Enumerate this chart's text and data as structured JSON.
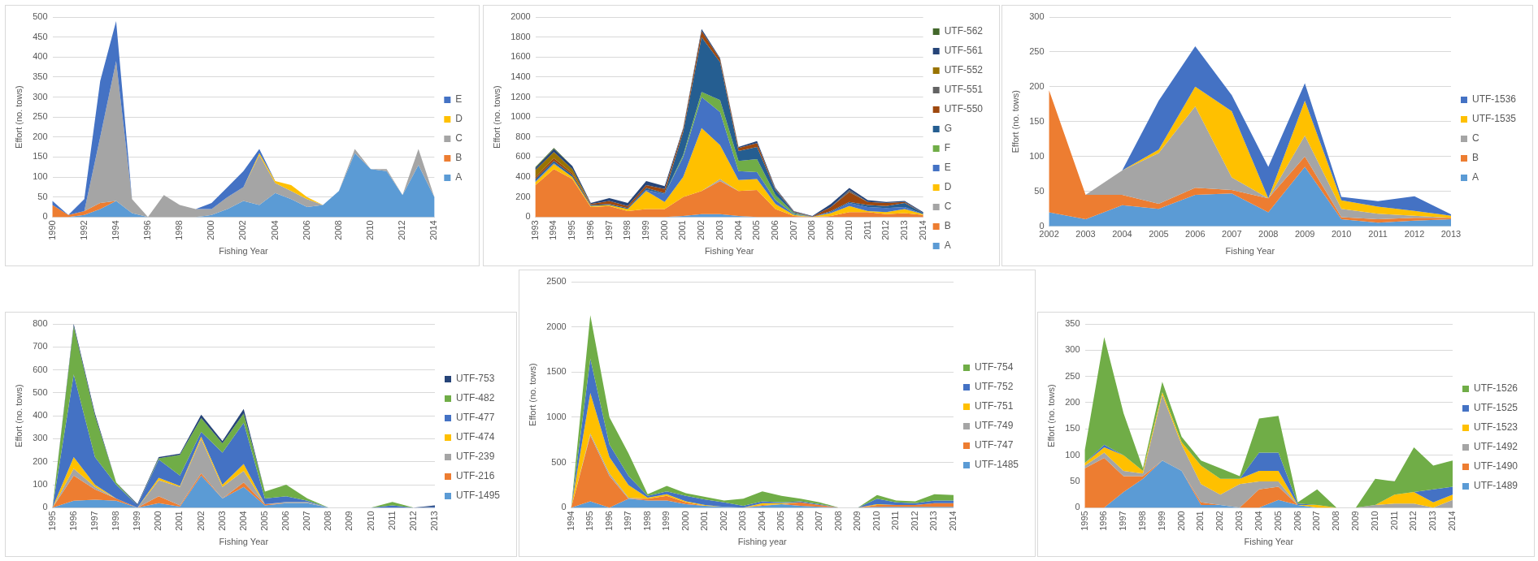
{
  "chart_data": [
    {
      "type": "area",
      "stacked": true,
      "xlabel": "Fishing Year",
      "ylabel": "Effort (no. tows)",
      "grid": "y",
      "legend": "right",
      "categories": [
        "1990",
        null,
        "1992",
        null,
        "1994",
        null,
        "1996",
        null,
        "1998",
        null,
        "2000",
        null,
        "2002",
        null,
        "2004",
        null,
        "2006",
        null,
        "2008",
        null,
        "2010",
        null,
        "2012",
        null,
        "2014"
      ],
      "ylim": [
        0,
        500
      ],
      "yticks": [
        0,
        50,
        100,
        150,
        200,
        250,
        300,
        350,
        400,
        450,
        500
      ],
      "series": [
        {
          "name": "A",
          "color": "#5b9bd5",
          "values": [
            0,
            0,
            5,
            20,
            40,
            10,
            0,
            0,
            0,
            0,
            5,
            20,
            40,
            30,
            60,
            45,
            25,
            30,
            65,
            160,
            120,
            115,
            55,
            130,
            50
          ]
        },
        {
          "name": "B",
          "color": "#ed7d31",
          "values": [
            30,
            5,
            10,
            15,
            0,
            null,
            null,
            null,
            null,
            null,
            null,
            null,
            null,
            null,
            null,
            null,
            null,
            null,
            null,
            null,
            null,
            null,
            null,
            null,
            null
          ]
        },
        {
          "name": "C",
          "color": "#a5a5a5",
          "values": [
            0,
            0,
            0,
            165,
            350,
            35,
            0,
            55,
            30,
            20,
            15,
            30,
            35,
            125,
            25,
            20,
            20,
            0,
            0,
            10,
            0,
            5,
            0,
            40,
            0
          ]
        },
        {
          "name": "D",
          "color": "#ffc000",
          "values": [
            null,
            null,
            null,
            null,
            null,
            null,
            null,
            null,
            null,
            null,
            null,
            null,
            0,
            5,
            5,
            15,
            5,
            0,
            null,
            null,
            null,
            null,
            null,
            null,
            null
          ]
        },
        {
          "name": "E",
          "color": "#4472c4",
          "values": [
            10,
            0,
            30,
            140,
            100,
            0,
            null,
            null,
            null,
            0,
            15,
            25,
            40,
            10,
            0,
            null,
            null,
            null,
            null,
            null,
            null,
            null,
            null,
            null,
            null
          ]
        }
      ]
    },
    {
      "type": "area",
      "stacked": true,
      "xlabel": "Fishing Year",
      "ylabel": "Effort (no. tows)",
      "grid": "y",
      "legend": "right",
      "categories": [
        "1993",
        "1994",
        "1995",
        "1996",
        "1997",
        "1998",
        "1999",
        "2000",
        "2001",
        "2002",
        "2003",
        "2004",
        "2005",
        "2006",
        "2007",
        "2008",
        "2009",
        "2010",
        "2011",
        "2012",
        "2013",
        "2014"
      ],
      "ylim": [
        0,
        2000
      ],
      "yticks": [
        0,
        200,
        400,
        600,
        800,
        1000,
        1200,
        1400,
        1600,
        1800,
        2000
      ],
      "series": [
        {
          "name": "A",
          "color": "#5b9bd5",
          "values": [
            null,
            null,
            null,
            null,
            null,
            null,
            null,
            0,
            10,
            30,
            30,
            10,
            0,
            null,
            null,
            null,
            null,
            null,
            null,
            null,
            null,
            null
          ]
        },
        {
          "name": "B",
          "color": "#ed7d31",
          "values": [
            320,
            480,
            380,
            100,
            110,
            60,
            80,
            80,
            190,
            230,
            330,
            250,
            270,
            80,
            10,
            0,
            10,
            50,
            50,
            30,
            40,
            20
          ]
        },
        {
          "name": "C",
          "color": "#a5a5a5",
          "values": [
            null,
            null,
            null,
            null,
            null,
            null,
            null,
            null,
            null,
            0,
            20,
            0,
            null,
            null,
            null,
            null,
            null,
            null,
            null,
            null,
            null,
            null
          ]
        },
        {
          "name": "D",
          "color": "#ffc000",
          "values": [
            30,
            50,
            20,
            10,
            10,
            20,
            180,
            70,
            200,
            630,
            340,
            110,
            110,
            50,
            10,
            0,
            30,
            60,
            10,
            20,
            40,
            10
          ]
        },
        {
          "name": "E",
          "color": "#4472c4",
          "values": [
            10,
            10,
            0,
            0,
            0,
            0,
            10,
            80,
            200,
            310,
            330,
            90,
            70,
            40,
            10,
            0,
            10,
            30,
            40,
            40,
            20,
            0
          ]
        },
        {
          "name": "F",
          "color": "#70ad47",
          "values": [
            null,
            null,
            null,
            null,
            null,
            null,
            null,
            0,
            20,
            50,
            120,
            100,
            130,
            50,
            10,
            0,
            null,
            null,
            null,
            null,
            null,
            null
          ]
        },
        {
          "name": "G",
          "color": "#255e91",
          "values": [
            20,
            20,
            20,
            10,
            10,
            10,
            20,
            10,
            230,
            550,
            380,
            100,
            120,
            50,
            10,
            0,
            10,
            10,
            20,
            20,
            40,
            10
          ]
        },
        {
          "name": "UTF-550",
          "color": "#9e480e",
          "values": [
            20,
            30,
            20,
            10,
            30,
            20,
            30,
            40,
            30,
            60,
            30,
            30,
            40,
            10,
            5,
            5,
            40,
            100,
            30,
            30,
            10,
            0
          ]
        },
        {
          "name": "UTF-551",
          "color": "#636363",
          "values": [
            null,
            null,
            null,
            null,
            null,
            null,
            null,
            null,
            null,
            null,
            null,
            null,
            null,
            null,
            null,
            null,
            0,
            20,
            0,
            null,
            null,
            null
          ]
        },
        {
          "name": "UTF-552",
          "color": "#997300",
          "values": [
            70,
            60,
            40,
            0,
            null,
            null,
            null,
            null,
            null,
            null,
            null,
            null,
            null,
            null,
            null,
            null,
            null,
            null,
            null,
            null,
            null,
            null
          ]
        },
        {
          "name": "UTF-561",
          "color": "#264478",
          "values": [
            20,
            30,
            30,
            10,
            30,
            30,
            40,
            30,
            10,
            20,
            10,
            10,
            20,
            10,
            5,
            5,
            30,
            20,
            20,
            10,
            10,
            10
          ]
        },
        {
          "name": "UTF-562",
          "color": "#43682b",
          "values": [
            10,
            10,
            0,
            null,
            null,
            null,
            null,
            null,
            null,
            null,
            null,
            null,
            null,
            null,
            null,
            null,
            null,
            null,
            null,
            null,
            null,
            null
          ]
        }
      ]
    },
    {
      "type": "area",
      "stacked": true,
      "xlabel": "Fishing Year",
      "ylabel": "Effort (no. tows)",
      "grid": "y",
      "legend": "right",
      "categories": [
        "2002",
        "2003",
        "2004",
        "2005",
        "2006",
        "2007",
        "2008",
        "2009",
        "2010",
        "2011",
        "2012",
        "2013"
      ],
      "ylim": [
        0,
        300
      ],
      "yticks": [
        0,
        50,
        100,
        150,
        200,
        250,
        300
      ],
      "series": [
        {
          "name": "A",
          "color": "#5b9bd5",
          "values": [
            20,
            10,
            30,
            25,
            45,
            47,
            20,
            85,
            10,
            5,
            8,
            10
          ]
        },
        {
          "name": "B",
          "color": "#ed7d31",
          "values": [
            175,
            35,
            15,
            7,
            10,
            5,
            20,
            15,
            3,
            5,
            4,
            2
          ]
        },
        {
          "name": "C",
          "color": "#a5a5a5",
          "values": [
            0,
            0,
            35,
            73,
            117,
            18,
            0,
            30,
            12,
            8,
            3,
            0
          ]
        },
        {
          "name": "UTF-1535",
          "color": "#ffc000",
          "values": [
            0,
            0,
            0,
            5,
            28,
            95,
            0,
            50,
            12,
            10,
            7,
            3
          ]
        },
        {
          "name": "UTF-1536",
          "color": "#4472c4",
          "values": [
            0,
            0,
            0,
            70,
            58,
            23,
            45,
            25,
            5,
            8,
            21,
            2
          ]
        }
      ]
    },
    {
      "type": "area",
      "stacked": true,
      "xlabel": "Fishing Year",
      "ylabel": "Effort (no. tows)",
      "grid": "y",
      "legend": "right",
      "categories": [
        "1995",
        "1996",
        "1997",
        "1998",
        "1999",
        "2000",
        "2001",
        "2002",
        "2003",
        "2004",
        "2005",
        "2006",
        "2007",
        "2008",
        "2009",
        "2010",
        "2011",
        "2012",
        "2013"
      ],
      "ylim": [
        0,
        800
      ],
      "yticks": [
        0,
        100,
        200,
        300,
        400,
        500,
        600,
        700,
        800
      ],
      "series": [
        {
          "name": "UTF-1495",
          "color": "#5b9bd5",
          "values": [
            0,
            30,
            35,
            30,
            0,
            20,
            5,
            140,
            40,
            90,
            10,
            20,
            20,
            0,
            0,
            0,
            0,
            0,
            0
          ]
        },
        {
          "name": "UTF-216",
          "color": "#ed7d31",
          "values": [
            0,
            110,
            45,
            10,
            0,
            30,
            5,
            10,
            0,
            20,
            5,
            0,
            0,
            0,
            0,
            0,
            0,
            0,
            0
          ]
        },
        {
          "name": "UTF-239",
          "color": "#a5a5a5",
          "values": [
            0,
            30,
            10,
            0,
            0,
            70,
            80,
            150,
            50,
            50,
            0,
            5,
            5,
            0,
            0,
            0,
            0,
            0,
            0
          ]
        },
        {
          "name": "UTF-474",
          "color": "#ffc000",
          "values": [
            0,
            50,
            10,
            0,
            0,
            10,
            5,
            10,
            10,
            30,
            0,
            0,
            0,
            0,
            0,
            0,
            0,
            0,
            0
          ]
        },
        {
          "name": "UTF-477",
          "color": "#4472c4",
          "values": [
            0,
            360,
            120,
            60,
            10,
            80,
            45,
            20,
            140,
            180,
            25,
            25,
            5,
            0,
            0,
            0,
            10,
            0,
            5
          ]
        },
        {
          "name": "UTF-482",
          "color": "#70ad47",
          "values": [
            0,
            210,
            180,
            10,
            0,
            5,
            90,
            60,
            40,
            40,
            30,
            50,
            10,
            0,
            0,
            0,
            15,
            0,
            0
          ]
        },
        {
          "name": "UTF-753",
          "color": "#264478",
          "values": [
            0,
            10,
            10,
            0,
            5,
            5,
            5,
            15,
            10,
            20,
            0,
            0,
            0,
            0,
            0,
            0,
            0,
            0,
            5
          ]
        }
      ]
    },
    {
      "type": "area",
      "stacked": true,
      "xlabel": "Fishing year",
      "ylabel": "Effort (no. tows)",
      "grid": "y",
      "legend": "right",
      "categories": [
        "1994",
        "1995",
        "1996",
        "1997",
        "1998",
        "1999",
        "2000",
        "2001",
        "2002",
        "2003",
        "2004",
        "2005",
        "2006",
        "2007",
        "2008",
        "2009",
        "2010",
        "2011",
        "2012",
        "2013",
        "2014"
      ],
      "ylim": [
        0,
        2500
      ],
      "yticks": [
        0,
        500,
        1000,
        1500,
        2000,
        2500
      ],
      "series": [
        {
          "name": "UTF-1485",
          "color": "#5b9bd5",
          "values": [
            0,
            70,
            0,
            100,
            80,
            80,
            40,
            20,
            10,
            0,
            20,
            40,
            20,
            10,
            0,
            0,
            10,
            10,
            10,
            10,
            10
          ]
        },
        {
          "name": "UTF-747",
          "color": "#ed7d31",
          "values": [
            0,
            730,
            350,
            0,
            20,
            50,
            20,
            0,
            0,
            0,
            10,
            0,
            40,
            20,
            0,
            0,
            20,
            20,
            20,
            40,
            40
          ]
        },
        {
          "name": "UTF-749",
          "color": "#a5a5a5",
          "values": [
            0,
            20,
            30,
            10,
            0,
            0,
            0,
            0,
            0,
            0,
            0,
            0,
            0,
            0,
            0,
            0,
            0,
            0,
            0,
            0,
            0
          ]
        },
        {
          "name": "UTF-751",
          "color": "#ffc000",
          "values": [
            0,
            450,
            180,
            140,
            10,
            20,
            10,
            10,
            0,
            0,
            20,
            10,
            0,
            0,
            0,
            0,
            10,
            0,
            0,
            0,
            0
          ]
        },
        {
          "name": "UTF-752",
          "color": "#4472c4",
          "values": [
            0,
            380,
            140,
            100,
            20,
            30,
            60,
            60,
            50,
            20,
            20,
            10,
            10,
            10,
            0,
            0,
            60,
            30,
            20,
            30,
            30
          ]
        },
        {
          "name": "UTF-754",
          "color": "#70ad47",
          "values": [
            0,
            480,
            300,
            250,
            20,
            60,
            30,
            30,
            20,
            80,
            110,
            70,
            30,
            20,
            0,
            0,
            40,
            20,
            20,
            70,
            60
          ]
        }
      ]
    },
    {
      "type": "area",
      "stacked": true,
      "xlabel": "Fishing Year",
      "ylabel": "Effort (no. tows)",
      "grid": "y",
      "legend": "right",
      "categories": [
        "1995",
        "1996",
        "1997",
        "1998",
        "1999",
        "2000",
        "2001",
        "2002",
        "2003",
        "2004",
        "2005",
        "2006",
        "2007",
        "2008",
        "2009",
        "2010",
        "2011",
        "2012",
        "2013",
        "2014"
      ],
      "ylim": [
        0,
        350
      ],
      "yticks": [
        0,
        50,
        100,
        150,
        200,
        250,
        300,
        350
      ],
      "series": [
        {
          "name": "UTF-1489",
          "color": "#5b9bd5",
          "values": [
            0,
            0,
            30,
            55,
            90,
            70,
            5,
            5,
            0,
            0,
            15,
            5,
            0,
            0,
            0,
            0,
            0,
            0,
            0,
            0
          ]
        },
        {
          "name": "UTF-1490",
          "color": "#ed7d31",
          "values": [
            75,
            95,
            30,
            5,
            0,
            0,
            5,
            0,
            0,
            35,
            25,
            0,
            0,
            0,
            0,
            0,
            0,
            0,
            0,
            0
          ]
        },
        {
          "name": "UTF-1492",
          "color": "#a5a5a5",
          "values": [
            5,
            10,
            10,
            5,
            125,
            50,
            35,
            20,
            45,
            15,
            10,
            0,
            0,
            0,
            0,
            5,
            8,
            8,
            0,
            15
          ]
        },
        {
          "name": "UTF-1523",
          "color": "#ffc000",
          "values": [
            5,
            10,
            30,
            5,
            5,
            5,
            35,
            30,
            10,
            20,
            20,
            0,
            5,
            0,
            0,
            0,
            17,
            22,
            10,
            10
          ]
        },
        {
          "name": "UTF-1525",
          "color": "#4472c4",
          "values": [
            0,
            5,
            0,
            null,
            null,
            null,
            null,
            null,
            0,
            35,
            35,
            3,
            0,
            null,
            null,
            null,
            null,
            0,
            25,
            15
          ]
        },
        {
          "name": "UTF-1526",
          "color": "#70ad47",
          "values": [
            25,
            205,
            80,
            5,
            20,
            10,
            10,
            20,
            5,
            65,
            70,
            2,
            30,
            0,
            0,
            50,
            25,
            85,
            45,
            50
          ]
        }
      ]
    }
  ]
}
